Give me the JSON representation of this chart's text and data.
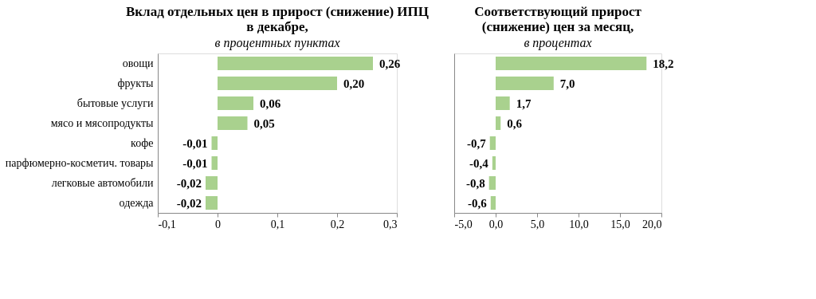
{
  "chart_data": [
    {
      "type": "bar",
      "orientation": "horizontal",
      "title": [
        "Вклад отдельных цен в прирост (снижение) ИПЦ",
        "в декабре,"
      ],
      "subtitle": "в процентных пунктах",
      "categories": [
        "овощи",
        "фрукты",
        "бытовые услуги",
        "мясо и мясопродукты",
        "кофе",
        "парфюмерно-косметич. товары",
        "легковые автомобили",
        "одежда"
      ],
      "values": [
        0.26,
        0.2,
        0.06,
        0.05,
        -0.01,
        -0.01,
        -0.02,
        -0.02
      ],
      "color": "#a9d18e",
      "value_labels": [
        "0,26",
        "0,20",
        "0,06",
        "0,05",
        "-0,01",
        "-0,01",
        "-0,02",
        "-0,02"
      ],
      "xlim": [
        -0.1,
        0.3
      ],
      "xticks": [
        {
          "value": -0.1,
          "label": "-0,1"
        },
        0,
        {
          "value": 0.1,
          "label": "0,1"
        },
        {
          "value": 0.2,
          "label": "0,2"
        },
        {
          "value": 0.3,
          "label": "0,3"
        }
      ]
    },
    {
      "type": "bar",
      "orientation": "horizontal",
      "title": [
        "Соответствующий прирост",
        "(снижение) цен за месяц,"
      ],
      "subtitle": "в процентах",
      "categories": [
        null,
        null,
        null,
        null,
        null,
        null,
        null,
        null
      ],
      "values": [
        18.2,
        7.0,
        1.7,
        0.6,
        -0.7,
        -0.4,
        -0.8,
        -0.6
      ],
      "color": "#a9d18e",
      "value_labels": [
        "18,2",
        "7,0",
        "1,7",
        "0,6",
        "-0,7",
        "-0,4",
        "-0,8",
        "-0,6"
      ],
      "xlim": [
        -5,
        20
      ],
      "xticks": [
        {
          "value": -5,
          "label": "-5,0"
        },
        {
          "value": 0,
          "label": "0,0"
        },
        {
          "value": 5,
          "label": "5,0"
        },
        {
          "value": 10,
          "label": "10,0"
        },
        {
          "value": 15,
          "label": "15,0"
        },
        {
          "value": 20,
          "label": "20,0"
        }
      ],
      "tick_labels": "x"
    }
  ]
}
